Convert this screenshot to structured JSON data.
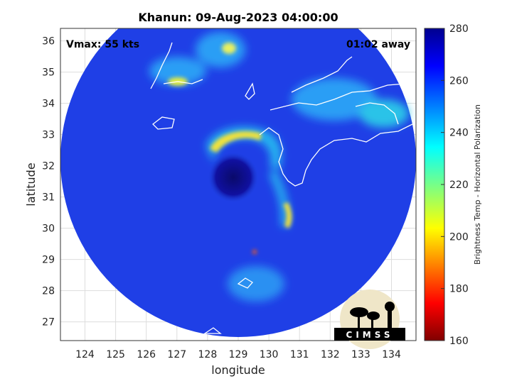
{
  "chart_data": {
    "type": "heatmap",
    "title": "Khanun: 09-Aug-2023 04:00:00",
    "xlabel": "longitude",
    "ylabel": "latitude",
    "xlim": [
      123.2,
      134.8
    ],
    "ylim": [
      26.4,
      36.4
    ],
    "x_ticks": [
      124,
      125,
      126,
      127,
      128,
      129,
      130,
      131,
      132,
      133,
      134
    ],
    "y_ticks": [
      27,
      28,
      29,
      30,
      31,
      32,
      33,
      34,
      35,
      36
    ],
    "grid": true,
    "annotations": {
      "vmax": "Vmax: 55 kts",
      "time_away": "01:02 away"
    },
    "storm_center": {
      "lon": 129.0,
      "lat": 31.6
    },
    "colorbar": {
      "label": "Brightness Temp - Horizontal Polarization",
      "range": [
        160,
        280
      ],
      "ticks": [
        160,
        180,
        200,
        220,
        240,
        260,
        280
      ],
      "colormap": "jet"
    }
  },
  "logo": {
    "text": "CIMSS"
  }
}
